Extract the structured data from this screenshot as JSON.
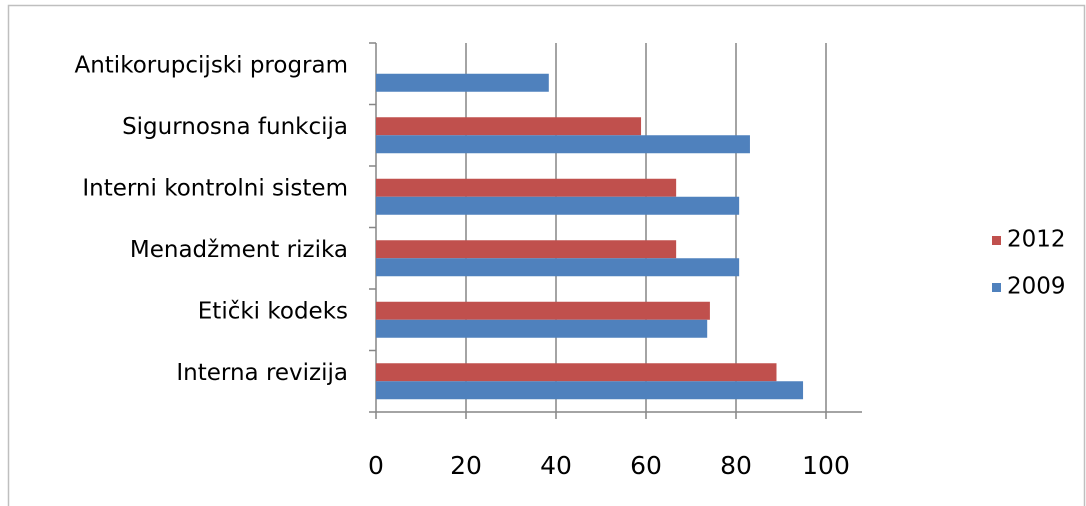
{
  "chart_data": {
    "type": "bar",
    "orientation": "horizontal",
    "categories": [
      "Interna revizija",
      "Etički kodeks",
      "Menadžment rizika",
      "Interni kontrolni sistem",
      "Sigurnosna funkcija",
      "Antikorupcijski program"
    ],
    "series": [
      {
        "name": "2012",
        "color": "#c0504d",
        "values": [
          89,
          74.2,
          66.7,
          66.7,
          58.9,
          null
        ]
      },
      {
        "name": "2009",
        "color": "#4f81bd",
        "values": [
          94.9,
          73.6,
          80.7,
          80.7,
          83.1,
          38.4
        ]
      }
    ],
    "xlim": [
      0,
      108
    ],
    "xticks": [
      0,
      20,
      40,
      60,
      80,
      100
    ],
    "grid": true,
    "legend": "right"
  }
}
